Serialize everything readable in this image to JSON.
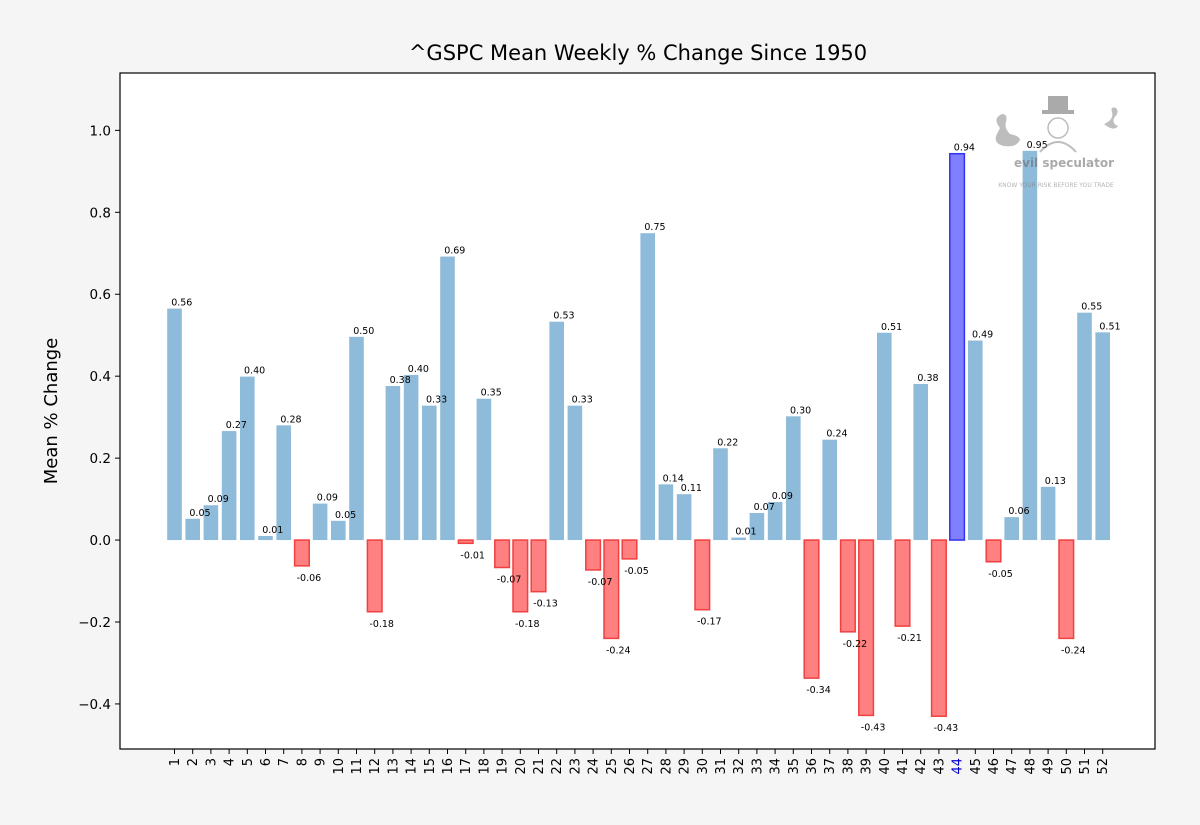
{
  "chart_data": {
    "type": "bar",
    "title": "^GSPC Mean Weekly % Change Since 1950",
    "ylabel": "Mean % Change",
    "xlabel": "",
    "ylim": [
      -0.51,
      1.14
    ],
    "yticks": [
      1.0,
      0.8,
      0.6,
      0.4,
      0.2,
      0.0,
      -0.2,
      -0.4
    ],
    "ytick_labels": [
      "1.0",
      "0.8",
      "0.6",
      "0.4",
      "0.2",
      "0.0",
      "−0.2",
      "−0.4"
    ],
    "grid": false,
    "highlight_category": "44",
    "categories": [
      "1",
      "2",
      "3",
      "4",
      "5",
      "6",
      "7",
      "8",
      "9",
      "10",
      "11",
      "12",
      "13",
      "14",
      "15",
      "16",
      "17",
      "18",
      "19",
      "20",
      "21",
      "22",
      "23",
      "24",
      "25",
      "26",
      "27",
      "28",
      "29",
      "30",
      "31",
      "32",
      "33",
      "34",
      "35",
      "36",
      "37",
      "38",
      "39",
      "40",
      "41",
      "42",
      "43",
      "44",
      "45",
      "46",
      "47",
      "48",
      "49",
      "50",
      "51",
      "52"
    ],
    "values": [
      0.565,
      0.052,
      0.085,
      0.266,
      0.399,
      0.01,
      0.28,
      -0.063,
      0.089,
      0.047,
      0.496,
      -0.175,
      0.376,
      0.403,
      0.328,
      0.692,
      -0.008,
      0.345,
      -0.067,
      -0.175,
      -0.126,
      0.533,
      0.328,
      -0.073,
      -0.24,
      -0.046,
      0.749,
      0.136,
      0.112,
      -0.17,
      0.224,
      0.006,
      0.066,
      0.093,
      0.302,
      -0.337,
      0.245,
      -0.224,
      -0.428,
      0.506,
      -0.21,
      0.381,
      -0.43,
      0.943,
      0.487,
      -0.053,
      0.056,
      0.95,
      0.13,
      -0.24,
      0.555,
      0.507
    ],
    "value_labels": [
      "0.56",
      "0.05",
      "0.09",
      "0.27",
      "0.40",
      "0.01",
      "0.28",
      "-0.06",
      "0.09",
      "0.05",
      "0.50",
      "-0.18",
      "0.38",
      "0.40",
      "0.33",
      "0.69",
      "-0.01",
      "0.35",
      "-0.07",
      "-0.18",
      "-0.13",
      "0.53",
      "0.33",
      "-0.07",
      "-0.24",
      "-0.05",
      "0.75",
      "0.14",
      "0.11",
      "-0.17",
      "0.22",
      "0.01",
      "0.07",
      "0.09",
      "0.30",
      "-0.34",
      "0.24",
      "-0.22",
      "-0.43",
      "0.51",
      "-0.21",
      "0.38",
      "-0.43",
      "0.94",
      "0.49",
      "-0.05",
      "0.06",
      "0.95",
      "0.13",
      "-0.24",
      "0.55",
      "0.51"
    ],
    "colors": {
      "positive_fill": "#8fbbda",
      "negative_fill": "#ff8080",
      "negative_edge": "#f04040",
      "highlight_fill": "#7f7fff",
      "highlight_edge": "#3333ee",
      "highlight_tick": "#0000cc"
    }
  },
  "watermark": {
    "name": "evil speculator",
    "tagline": "KNOW YOUR RISK BEFORE YOU TRADE"
  }
}
